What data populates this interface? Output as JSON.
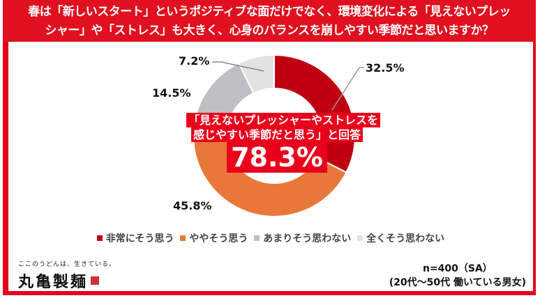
{
  "header": {
    "title_line1": "春は「新しいスタート」というポジティブな面だけでなく、環境変化による「見えないプレッ",
    "title_line2": "シャー」や「ストレス」も大きく、心身のバランスを崩しやすい季節だと思いますか？"
  },
  "callout": {
    "line1": "「見えないプレッシャーやストレスを",
    "line2": "感じやすい季節だと思う」と回答",
    "value": "78.3%"
  },
  "labels": {
    "very": "32.5%",
    "somewhat": "45.8%",
    "not_much": "14.5%",
    "not_at_all": "7.2%"
  },
  "legend": [
    {
      "label": "非常にそう思う",
      "color": "#c00010"
    },
    {
      "label": "ややそう思う",
      "color": "#e8773a"
    },
    {
      "label": "あまりそう思わない",
      "color": "#bfbfc2"
    },
    {
      "label": "全くそう思わない",
      "color": "#e2e2e2"
    }
  ],
  "brand": {
    "tagline": "ここのうどんは、生きている。",
    "name": "丸亀製麺"
  },
  "sample": {
    "line1": "n=400（SA）",
    "line2": "(20代～50代 働いている男女)"
  },
  "colors": {
    "accent": "#e8001c",
    "very": "#c00010",
    "somewhat": "#e8773a",
    "not_much": "#bfbfc2",
    "not_at_all": "#e2e2e2"
  },
  "chart_data": {
    "type": "pie",
    "subtype": "donut",
    "title": "春は「新しいスタート」というポジティブな面だけでなく、環境変化による「見えないプレッシャー」や「ストレス」も大きく、心身のバランスを崩しやすい季節だと思いますか？",
    "categories": [
      "非常にそう思う",
      "ややそう思う",
      "あまりそう思わない",
      "全くそう思わない"
    ],
    "values": [
      32.5,
      45.8,
      14.5,
      7.2
    ],
    "colors": [
      "#c00010",
      "#e8773a",
      "#bfbfc2",
      "#e2e2e2"
    ],
    "annotation": "「見えないプレッシャーやストレスを感じやすい季節だと思う」と回答 78.3%",
    "legend_position": "bottom",
    "note": "n=400（SA）(20代～50代 働いている男女)"
  }
}
